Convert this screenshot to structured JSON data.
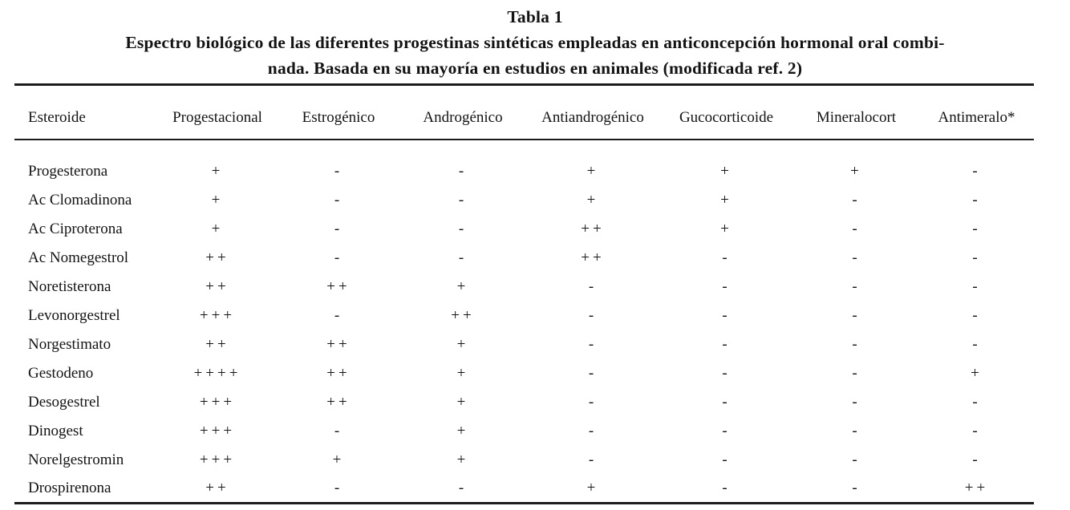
{
  "table": {
    "caption": {
      "label": "Tabla 1",
      "title_line1": "Espectro biológico de las diferentes progestinas sintéticas empleadas en anticoncepción hormonal oral combi-",
      "title_line2": "nada. Basada en su mayoría en estudios en animales (modificada ref. 2)"
    },
    "columns": [
      "Esteroide",
      "Progestacional",
      "Estrogénico",
      "Androgénico",
      "Antiandrogénico",
      "Gucocorticoide",
      "Mineralocort",
      "Antimeralo*"
    ],
    "rows": [
      {
        "name": "Progesterona",
        "values": [
          "+",
          "-",
          "-",
          "+",
          "+",
          "+",
          "-"
        ]
      },
      {
        "name": "Ac Clomadinona",
        "values": [
          "+",
          "-",
          "-",
          "+",
          "+",
          "-",
          "-"
        ]
      },
      {
        "name": "Ac Ciproterona",
        "values": [
          "+",
          "-",
          "-",
          "++",
          "+",
          "-",
          "-"
        ]
      },
      {
        "name": "Ac Nomegestrol",
        "values": [
          "++",
          "-",
          "-",
          "++",
          "-",
          "-",
          "-"
        ]
      },
      {
        "name": "Noretisterona",
        "values": [
          "++",
          "++",
          "+",
          "-",
          "-",
          "-",
          "-"
        ]
      },
      {
        "name": "Levonorgestrel",
        "values": [
          "+++",
          "-",
          "++",
          "-",
          "-",
          "-",
          "-"
        ]
      },
      {
        "name": "Norgestimato",
        "values": [
          "++",
          "++",
          "+",
          "-",
          "-",
          "-",
          "-"
        ]
      },
      {
        "name": "Gestodeno",
        "values": [
          "++++",
          "++",
          "+",
          "-",
          "-",
          "-",
          "+"
        ]
      },
      {
        "name": "Desogestrel",
        "values": [
          "+++",
          "++",
          "+",
          "-",
          "-",
          "-",
          "-"
        ]
      },
      {
        "name": "Dinogest",
        "values": [
          "+++",
          "-",
          "+",
          "-",
          "-",
          "-",
          "-"
        ]
      },
      {
        "name": "Norelgestromin",
        "values": [
          "+++",
          "+",
          "+",
          "-",
          "-",
          "-",
          "-"
        ]
      },
      {
        "name": "Drospirenona",
        "values": [
          "++",
          "-",
          "-",
          "+",
          "-",
          "-",
          "++"
        ]
      }
    ]
  }
}
